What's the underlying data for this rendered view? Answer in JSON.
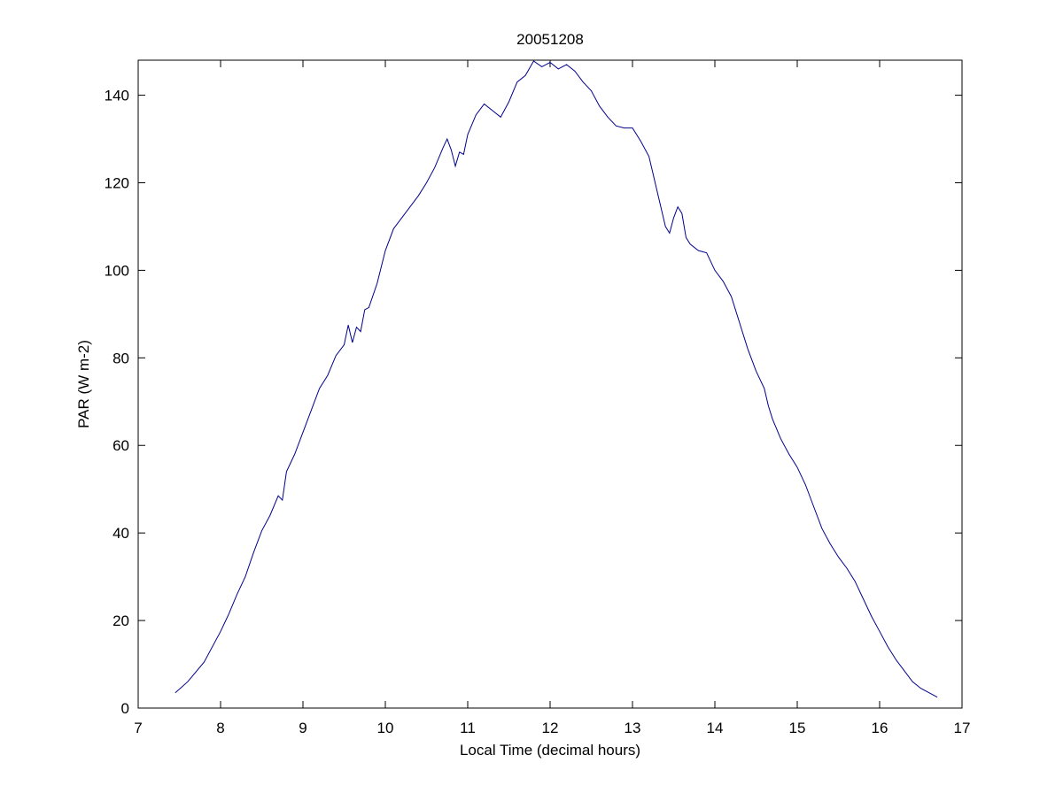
{
  "chart_data": {
    "type": "line",
    "title": "20051208",
    "xlabel": "Local Time (decimal hours)",
    "ylabel": "PAR (W m-2)",
    "xlim": [
      7,
      17
    ],
    "ylim": [
      0,
      148
    ],
    "xticks": [
      7,
      8,
      9,
      10,
      11,
      12,
      13,
      14,
      15,
      16,
      17
    ],
    "yticks": [
      0,
      20,
      40,
      60,
      80,
      100,
      120,
      140
    ],
    "series": [
      {
        "color": "#00008b",
        "x": [
          7.45,
          7.6,
          7.8,
          8.0,
          8.1,
          8.2,
          8.3,
          8.4,
          8.5,
          8.6,
          8.7,
          8.75,
          8.8,
          8.9,
          9.0,
          9.1,
          9.2,
          9.3,
          9.4,
          9.5,
          9.55,
          9.6,
          9.65,
          9.7,
          9.75,
          9.8,
          9.9,
          10.0,
          10.1,
          10.2,
          10.3,
          10.4,
          10.5,
          10.6,
          10.7,
          10.75,
          10.8,
          10.85,
          10.9,
          10.95,
          11.0,
          11.1,
          11.2,
          11.3,
          11.4,
          11.5,
          11.6,
          11.7,
          11.8,
          11.9,
          12.0,
          12.1,
          12.2,
          12.3,
          12.4,
          12.5,
          12.6,
          12.7,
          12.8,
          12.9,
          13.0,
          13.1,
          13.2,
          13.3,
          13.4,
          13.45,
          13.5,
          13.55,
          13.6,
          13.65,
          13.7,
          13.8,
          13.9,
          14.0,
          14.1,
          14.2,
          14.3,
          14.4,
          14.5,
          14.6,
          14.65,
          14.7,
          14.8,
          14.9,
          15.0,
          15.1,
          15.2,
          15.3,
          15.4,
          15.5,
          15.6,
          15.7,
          15.8,
          15.9,
          16.0,
          16.1,
          16.2,
          16.3,
          16.4,
          16.5,
          16.6,
          16.7
        ],
        "values": [
          3.5,
          6,
          10.5,
          17.5,
          21.5,
          26,
          30,
          35.5,
          40.5,
          44,
          48.5,
          47.5,
          54,
          58,
          63,
          68,
          73,
          76,
          80.5,
          83,
          87.5,
          83.5,
          87,
          86,
          91,
          91.5,
          97,
          104.5,
          109.5,
          112,
          114.5,
          117,
          120,
          123.5,
          128,
          130,
          127.5,
          123.8,
          127,
          126.5,
          131,
          135.5,
          138,
          136.5,
          135,
          138.5,
          143,
          144.5,
          147.8,
          146.5,
          147.5,
          146,
          147,
          145.5,
          143,
          141,
          137.5,
          135,
          133,
          132.5,
          132.5,
          129.5,
          126,
          118,
          110,
          108.5,
          112,
          114.5,
          113,
          107.5,
          106,
          104.5,
          104,
          100,
          97.5,
          94,
          88,
          82,
          77,
          73,
          69,
          66,
          61.5,
          58,
          55,
          51,
          46,
          41,
          37.5,
          34.5,
          32,
          29,
          25,
          21,
          17.5,
          14,
          11,
          8.5,
          6,
          4.5,
          3.5,
          2.5
        ]
      }
    ]
  }
}
